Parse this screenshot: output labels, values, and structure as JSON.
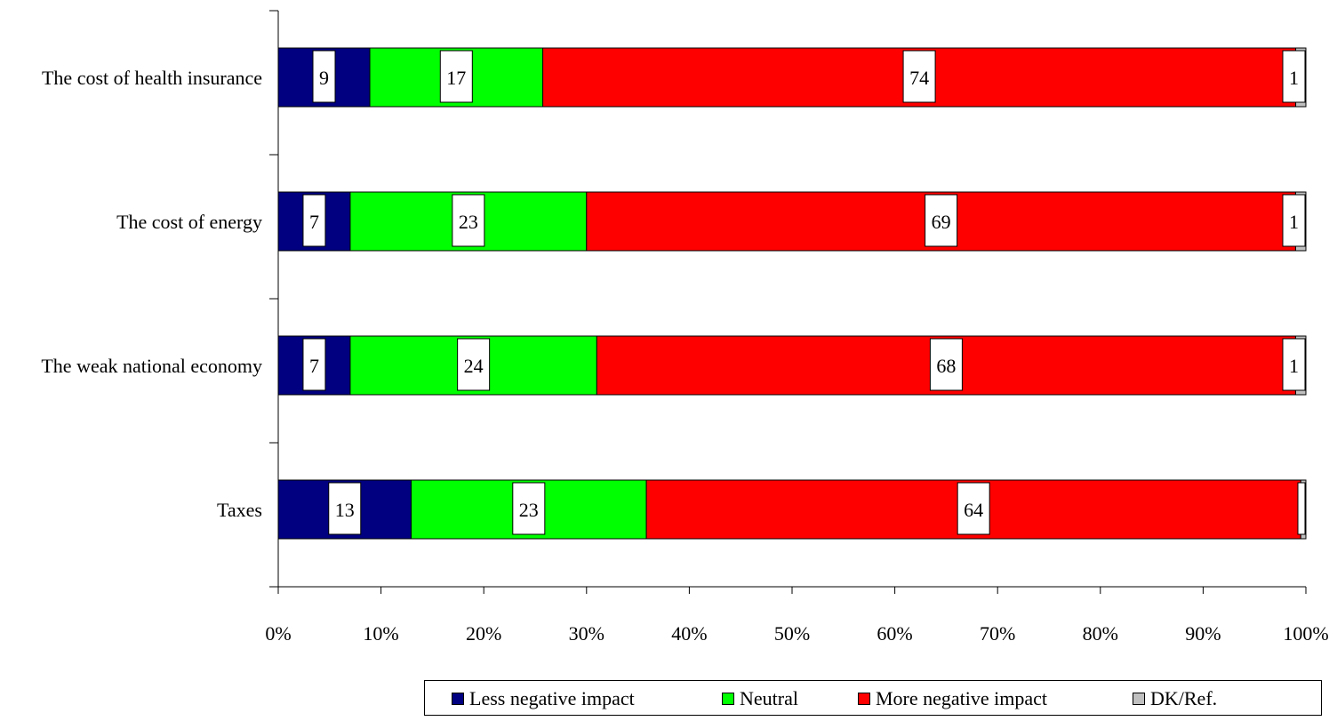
{
  "chart_data": {
    "type": "bar",
    "orientation": "horizontal",
    "stacked": "percent",
    "categories": [
      "The cost of health insurance",
      "The cost of energy",
      "The weak national economy",
      "Taxes"
    ],
    "series": [
      {
        "name": "Less negative impact",
        "color": "#000080",
        "values": [
          9,
          7,
          7,
          13
        ],
        "labels": [
          "9",
          "7",
          "7",
          "13"
        ]
      },
      {
        "name": "Neutral",
        "color": "#00ff00",
        "values": [
          17,
          23,
          24,
          23
        ],
        "labels": [
          "17",
          "23",
          "24",
          "23"
        ]
      },
      {
        "name": "More negative impact",
        "color": "#ff0000",
        "values": [
          74,
          69,
          68,
          64
        ],
        "labels": [
          "74",
          "69",
          "68",
          "64"
        ]
      },
      {
        "name": "DK/Ref.",
        "color": "#c0c0c0",
        "values": [
          1,
          1,
          1,
          0.5
        ],
        "labels": [
          "1",
          "1",
          "1",
          ""
        ]
      }
    ],
    "xlim": [
      0,
      100
    ],
    "xticks": [
      "0%",
      "10%",
      "20%",
      "30%",
      "40%",
      "50%",
      "60%",
      "70%",
      "80%",
      "90%",
      "100%"
    ],
    "grid": false,
    "legend_position": "bottom"
  }
}
